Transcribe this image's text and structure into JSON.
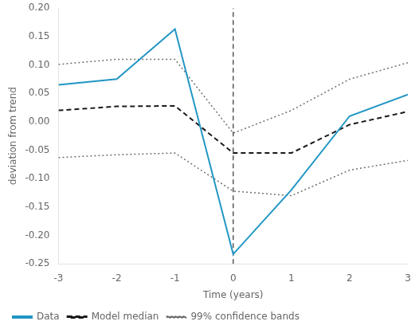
{
  "chart_data": {
    "type": "line",
    "xlabel": "Time (years)",
    "ylabel": "deviation from trend",
    "x": [
      -3,
      -2,
      -1,
      0,
      1,
      2,
      3
    ],
    "series": [
      {
        "name": "Data",
        "color": "#2196c4",
        "line_style": "solid",
        "values": [
          0.065,
          0.075,
          0.163,
          -0.233,
          -0.12,
          0.01,
          0.048
        ]
      },
      {
        "name": "Model median",
        "color": "#1a1a1a",
        "line_style": "dashed",
        "values": [
          0.02,
          0.027,
          0.028,
          -0.055,
          -0.055,
          -0.005,
          0.018
        ]
      },
      {
        "name": "99% confidence bands",
        "color": "#707070",
        "line_style": "dotted",
        "values": [
          0.101,
          0.11,
          0.11,
          -0.02,
          0.02,
          0.075,
          0.104
        ]
      },
      {
        "color": "#707070",
        "line_style": "dotted",
        "values": [
          -0.063,
          -0.058,
          -0.055,
          -0.122,
          -0.13,
          -0.085,
          -0.068
        ]
      }
    ],
    "vlines": [
      {
        "x": 0,
        "color": "#555555",
        "line_style": "dashed"
      }
    ],
    "xlim": [
      -3,
      3
    ],
    "xticks": [
      -3,
      -2,
      -1,
      0,
      1,
      2,
      3
    ],
    "ylim": [
      -0.25,
      0.2
    ],
    "yticks": [
      -0.25,
      {
        "value": -0.2,
        "label": "-0.20"
      },
      -0.15,
      {
        "value": -0.1,
        "label": "-0.10"
      },
      -0.05,
      {
        "value": 0,
        "label": "0.00"
      },
      0.05,
      {
        "value": 0.1,
        "label": "0.10"
      },
      0.15,
      {
        "value": 0.2,
        "label": "0.20"
      }
    ],
    "grid": false,
    "legend": "lower left"
  }
}
